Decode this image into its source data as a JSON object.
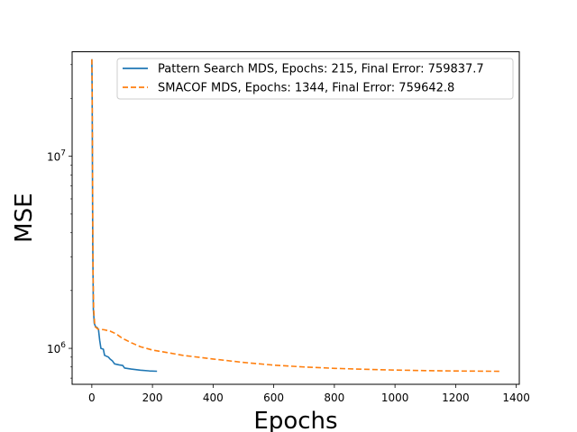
{
  "chart_data": {
    "type": "line",
    "title": "",
    "xlabel": "Epochs",
    "ylabel": "MSE",
    "xlim": [
      -65,
      1410
    ],
    "ylim": [
      650000,
      35000000
    ],
    "yscale": "log",
    "grid": false,
    "legend_position": "top-right",
    "x_ticks": [
      0,
      200,
      400,
      600,
      800,
      1000,
      1200,
      1400
    ],
    "x_tick_labels": [
      "0",
      "200",
      "400",
      "600",
      "800",
      "1000",
      "1200",
      "1400"
    ],
    "y_ticks": [
      1000000,
      10000000
    ],
    "y_tick_labels": [
      {
        "base": "10",
        "exp": "6"
      },
      {
        "base": "10",
        "exp": "7"
      }
    ],
    "series": [
      {
        "name": "Pattern Search MDS, Epochs: 215, Final Error: 759837.7",
        "color": "#1f77b4",
        "dash": "solid",
        "points": [
          [
            0,
            32000000
          ],
          [
            1,
            22000000
          ],
          [
            2,
            9000000
          ],
          [
            3,
            3500000
          ],
          [
            5,
            1600000
          ],
          [
            8,
            1350000
          ],
          [
            12,
            1300000
          ],
          [
            18,
            1280000
          ],
          [
            22,
            1250000
          ],
          [
            26,
            1100000
          ],
          [
            30,
            1000000
          ],
          [
            38,
            990000
          ],
          [
            42,
            920000
          ],
          [
            55,
            900000
          ],
          [
            60,
            880000
          ],
          [
            68,
            860000
          ],
          [
            75,
            830000
          ],
          [
            90,
            820000
          ],
          [
            102,
            815000
          ],
          [
            108,
            790000
          ],
          [
            130,
            780000
          ],
          [
            160,
            770000
          ],
          [
            190,
            763000
          ],
          [
            215,
            760000
          ]
        ]
      },
      {
        "name": "SMACOF MDS, Epochs: 1344, Final Error: 759642.8",
        "color": "#ff7f0e",
        "dash": "dashed",
        "points": [
          [
            0,
            32000000
          ],
          [
            1,
            25000000
          ],
          [
            2,
            12000000
          ],
          [
            3,
            5000000
          ],
          [
            4,
            2500000
          ],
          [
            6,
            1600000
          ],
          [
            10,
            1300000
          ],
          [
            20,
            1260000
          ],
          [
            40,
            1250000
          ],
          [
            60,
            1230000
          ],
          [
            80,
            1190000
          ],
          [
            100,
            1130000
          ],
          [
            130,
            1070000
          ],
          [
            160,
            1020000
          ],
          [
            200,
            980000
          ],
          [
            250,
            950000
          ],
          [
            300,
            920000
          ],
          [
            400,
            880000
          ],
          [
            500,
            845000
          ],
          [
            600,
            818000
          ],
          [
            700,
            800000
          ],
          [
            800,
            787000
          ],
          [
            900,
            778000
          ],
          [
            1000,
            771000
          ],
          [
            1100,
            766000
          ],
          [
            1200,
            762500
          ],
          [
            1300,
            760500
          ],
          [
            1344,
            759643
          ]
        ]
      }
    ]
  }
}
